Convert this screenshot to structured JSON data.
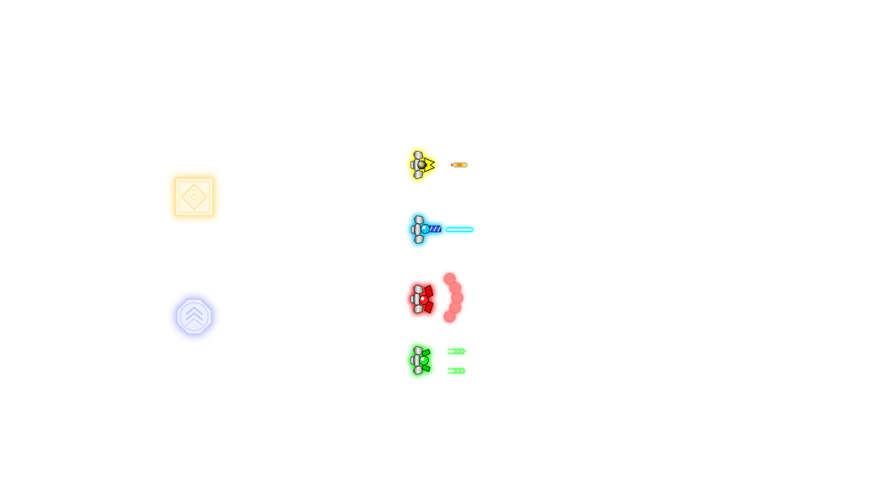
{
  "colors": {
    "background": "#ffffff",
    "yellow": "#ffff00",
    "cyan": "#00c8ff",
    "red": "#ff1e1e",
    "green": "#1eff1e",
    "powerup_gold": "#ffd25a",
    "powerup_blue": "#8c96ff"
  },
  "powerups": [
    {
      "icon": "diamond-powerup-icon",
      "color": "#ffd25a"
    },
    {
      "icon": "chevron-shield-powerup-icon",
      "color": "#8c96ff"
    }
  ],
  "ships": [
    {
      "weapon": "missile",
      "color": "#ffff00"
    },
    {
      "weapon": "laser",
      "color": "#00c8ff"
    },
    {
      "weapon": "spread-orbs",
      "color": "#ff1e1e"
    },
    {
      "weapon": "double-arrow",
      "color": "#1eff1e"
    }
  ]
}
